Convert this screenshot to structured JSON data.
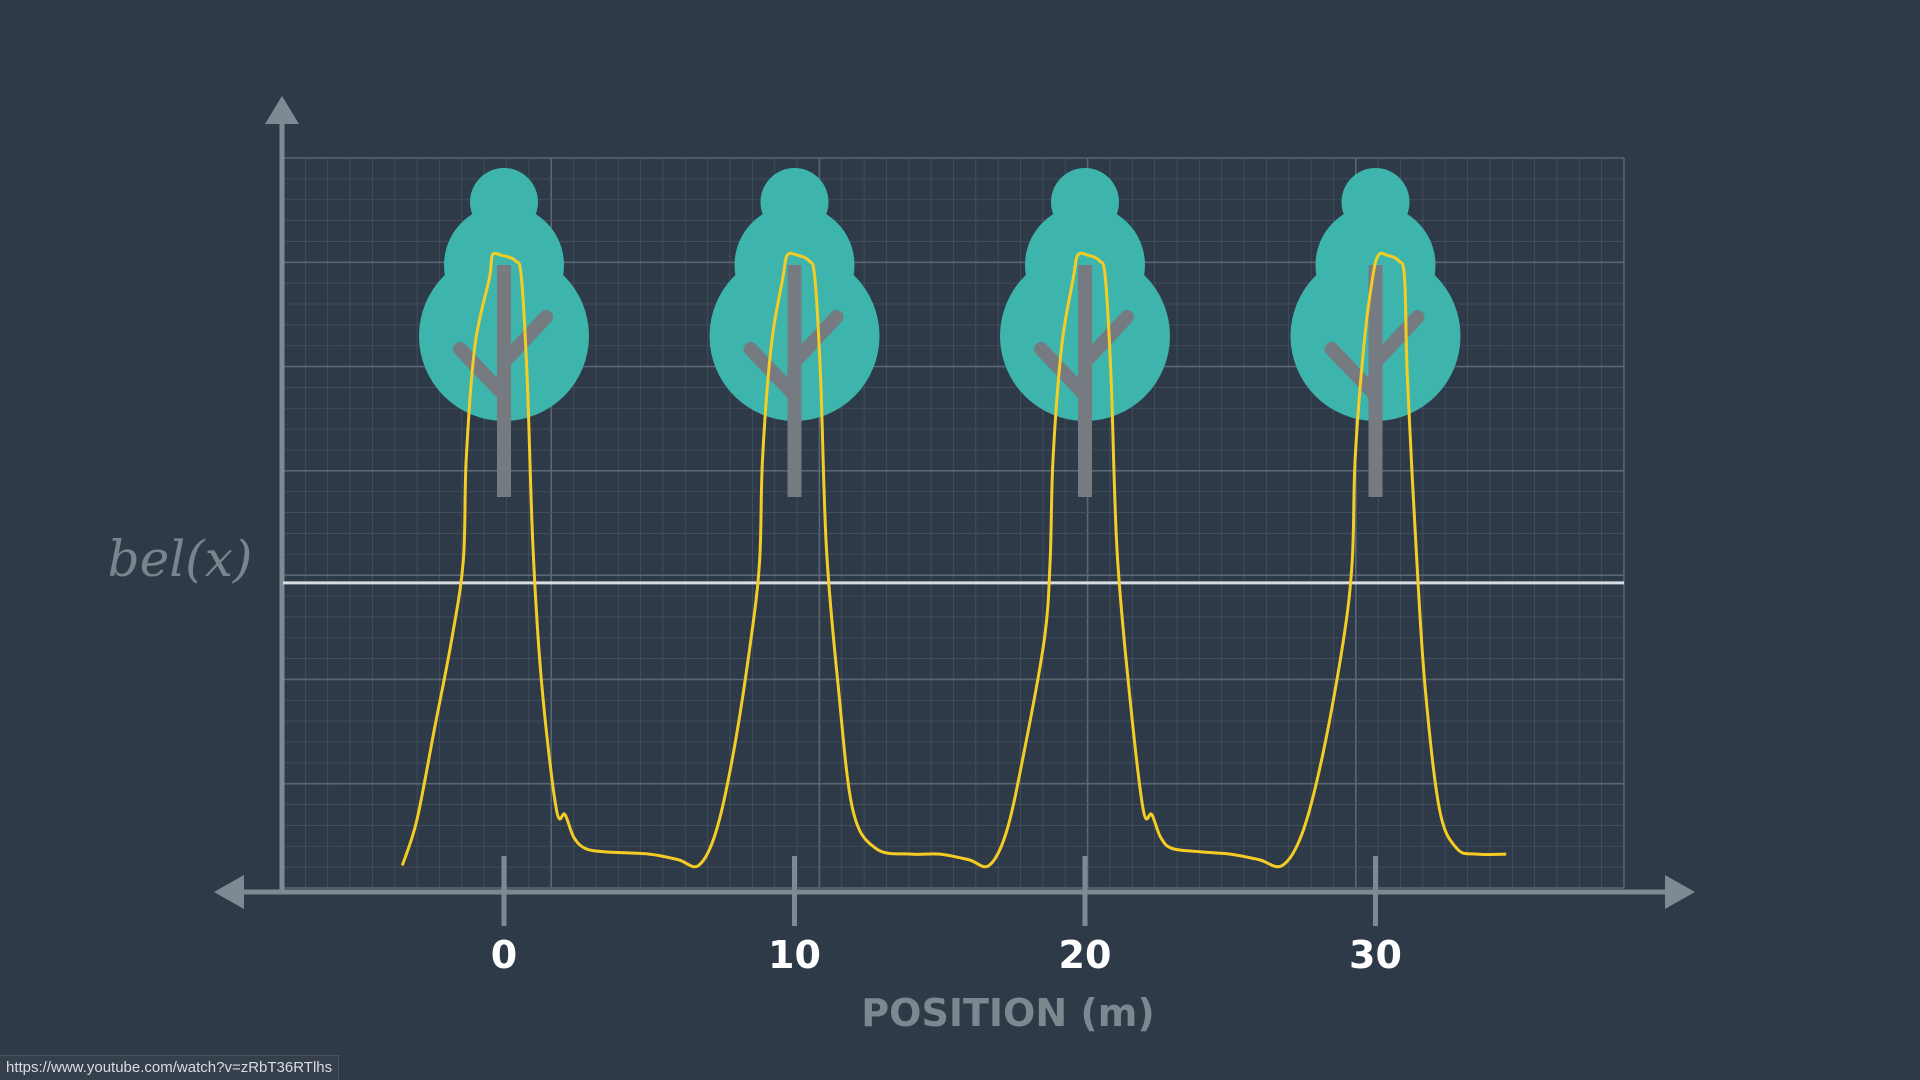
{
  "chart_data": {
    "type": "line",
    "title": "",
    "xlabel": "POSITION (m)",
    "ylabel": "bel(x)",
    "xlim": [
      -8,
      38
    ],
    "ylim": [
      0,
      1
    ],
    "x_ticks": [
      0,
      10,
      20,
      30
    ],
    "x_tick_labels": [
      "0",
      "10",
      "20",
      "30"
    ],
    "grid": true,
    "reference_line": {
      "y": 0.27
    },
    "trees_at": [
      0,
      10,
      20,
      30
    ],
    "series": [
      {
        "color": "#f5cc24",
        "points": [
          [
            -3.5,
            0.02
          ],
          [
            -3.0,
            0.06
          ],
          [
            -2.4,
            0.14
          ],
          [
            -1.8,
            0.22
          ],
          [
            -1.4,
            0.29
          ],
          [
            -1.3,
            0.38
          ],
          [
            -1.0,
            0.48
          ],
          [
            -0.5,
            0.54
          ],
          [
            -0.4,
            0.56
          ],
          [
            -0.1,
            0.56
          ],
          [
            0.4,
            0.555
          ],
          [
            0.6,
            0.54
          ],
          [
            0.8,
            0.45
          ],
          [
            1.0,
            0.3
          ],
          [
            1.3,
            0.18
          ],
          [
            1.8,
            0.07
          ],
          [
            2.1,
            0.065
          ],
          [
            2.4,
            0.045
          ],
          [
            2.8,
            0.035
          ],
          [
            3.5,
            0.032
          ],
          [
            5.0,
            0.03
          ],
          [
            6.0,
            0.025
          ],
          [
            6.7,
            0.02
          ],
          [
            7.3,
            0.05
          ],
          [
            7.9,
            0.12
          ],
          [
            8.5,
            0.22
          ],
          [
            8.8,
            0.29
          ],
          [
            8.9,
            0.38
          ],
          [
            9.2,
            0.48
          ],
          [
            9.6,
            0.54
          ],
          [
            9.75,
            0.56
          ],
          [
            10.1,
            0.56
          ],
          [
            10.5,
            0.555
          ],
          [
            10.7,
            0.54
          ],
          [
            10.9,
            0.45
          ],
          [
            11.1,
            0.3
          ],
          [
            11.5,
            0.18
          ],
          [
            12.0,
            0.07
          ],
          [
            12.8,
            0.035
          ],
          [
            14.0,
            0.03
          ],
          [
            15.0,
            0.03
          ],
          [
            16.0,
            0.025
          ],
          [
            16.7,
            0.02
          ],
          [
            17.3,
            0.05
          ],
          [
            17.9,
            0.12
          ],
          [
            18.6,
            0.22
          ],
          [
            18.8,
            0.29
          ],
          [
            18.9,
            0.38
          ],
          [
            19.2,
            0.48
          ],
          [
            19.6,
            0.54
          ],
          [
            19.75,
            0.56
          ],
          [
            20.1,
            0.56
          ],
          [
            20.5,
            0.555
          ],
          [
            20.7,
            0.54
          ],
          [
            20.9,
            0.45
          ],
          [
            21.1,
            0.3
          ],
          [
            21.5,
            0.18
          ],
          [
            22.0,
            0.07
          ],
          [
            22.3,
            0.065
          ],
          [
            22.6,
            0.045
          ],
          [
            23.0,
            0.035
          ],
          [
            24.0,
            0.032
          ],
          [
            25.0,
            0.03
          ],
          [
            26.0,
            0.025
          ],
          [
            26.8,
            0.02
          ],
          [
            27.5,
            0.05
          ],
          [
            28.2,
            0.12
          ],
          [
            28.9,
            0.22
          ],
          [
            29.2,
            0.29
          ],
          [
            29.3,
            0.38
          ],
          [
            29.6,
            0.48
          ],
          [
            29.9,
            0.54
          ],
          [
            30.1,
            0.56
          ],
          [
            30.4,
            0.56
          ],
          [
            30.8,
            0.555
          ],
          [
            31.0,
            0.54
          ],
          [
            31.1,
            0.45
          ],
          [
            31.4,
            0.3
          ],
          [
            31.7,
            0.18
          ],
          [
            32.2,
            0.07
          ],
          [
            32.8,
            0.035
          ],
          [
            33.5,
            0.03
          ],
          [
            34.5,
            0.03
          ]
        ]
      }
    ]
  },
  "status_bar": {
    "url": "https://www.youtube.com/watch?v=zRbT36RTlhs"
  },
  "colors": {
    "background": "#2e3a48",
    "grid_minor": "#45525f",
    "grid_major": "#5a6672",
    "axis": "#7e8993",
    "curve": "#f5cc24",
    "reference_line": "#d8dde2",
    "tree_canopy": "#3db5ad",
    "tree_trunk": "#757b80"
  },
  "icons": {
    "tree": "tree-icon"
  }
}
